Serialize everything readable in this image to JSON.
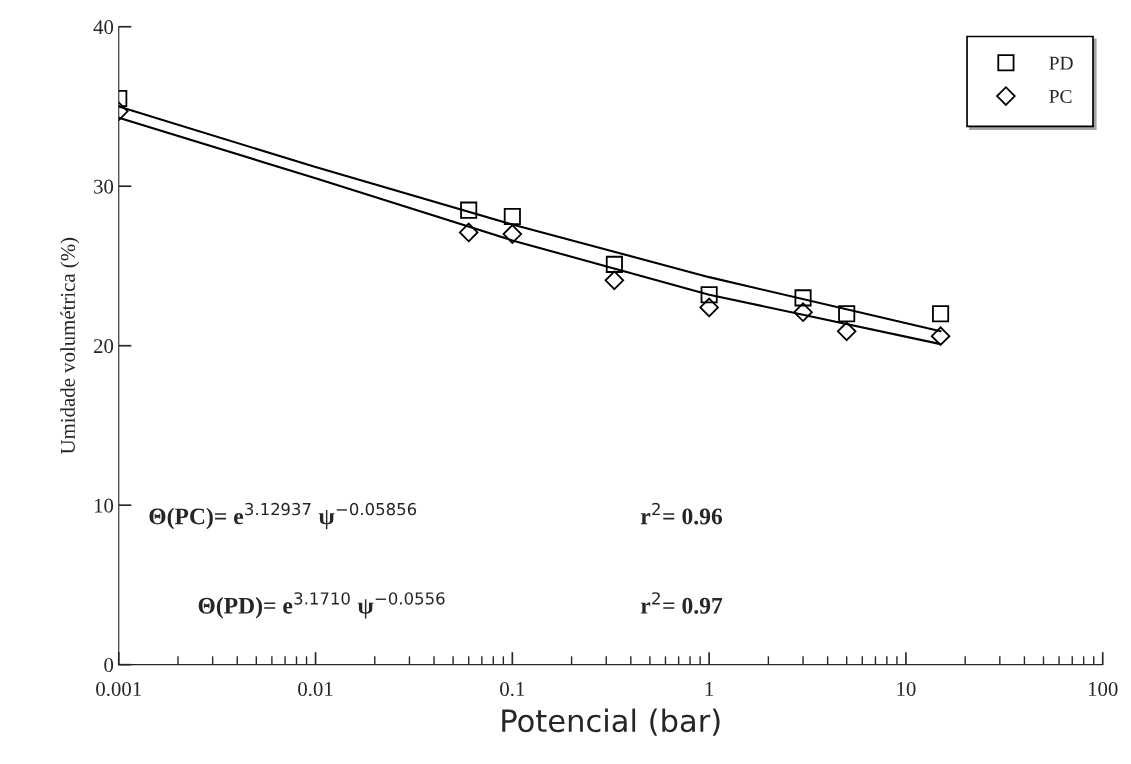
{
  "chart_data": {
    "type": "scatter",
    "xlabel": "Potencial (bar)",
    "ylabel": "Umidade volumétrica (%)",
    "log": "x",
    "xlim": [
      0.001,
      100
    ],
    "xticks": [
      0.001,
      0.01,
      0.1,
      1,
      10,
      100
    ],
    "ylim": [
      0,
      40
    ],
    "yticks": [
      0,
      10,
      20,
      30,
      40
    ],
    "grid": false,
    "legend": "top right",
    "series": [
      {
        "name": "PD",
        "marker": "square",
        "color": "#000000",
        "x": [
          0.001,
          0.06,
          0.1,
          0.33,
          1,
          3,
          5,
          15
        ],
        "values": [
          35.5,
          28.5,
          28.1,
          25.1,
          23.2,
          23.0,
          22.0,
          22.0
        ]
      },
      {
        "name": "PC",
        "marker": "diamond",
        "color": "#000000",
        "x": [
          0.001,
          0.06,
          0.1,
          0.33,
          1,
          3,
          5,
          15
        ],
        "values": [
          34.7,
          27.1,
          27.0,
          24.1,
          22.4,
          22.1,
          20.9,
          20.6
        ]
      },
      {
        "type": "line",
        "marker": "none",
        "line_style": "solid",
        "color": "#000000",
        "x": [
          0.001,
          0.01,
          0.1,
          1,
          15
        ],
        "values": [
          35.0,
          31.2,
          27.6,
          24.3,
          20.9
        ]
      },
      {
        "type": "line",
        "marker": "none",
        "line_style": "solid",
        "color": "#000000",
        "x": [
          0.001,
          0.01,
          0.1,
          1,
          15
        ],
        "values": [
          34.3,
          30.5,
          26.6,
          23.2,
          20.1
        ]
      }
    ],
    "annotations": [
      "Θ(PC)= e$^{3.12937}$ ψ$^{−0.05856}$",
      "r$^{2}$= 0.96",
      "Θ(PD)= e$^{3.1710}$ ψ$^{−0.0556}$",
      "r$^{2}$= 0.97"
    ]
  }
}
